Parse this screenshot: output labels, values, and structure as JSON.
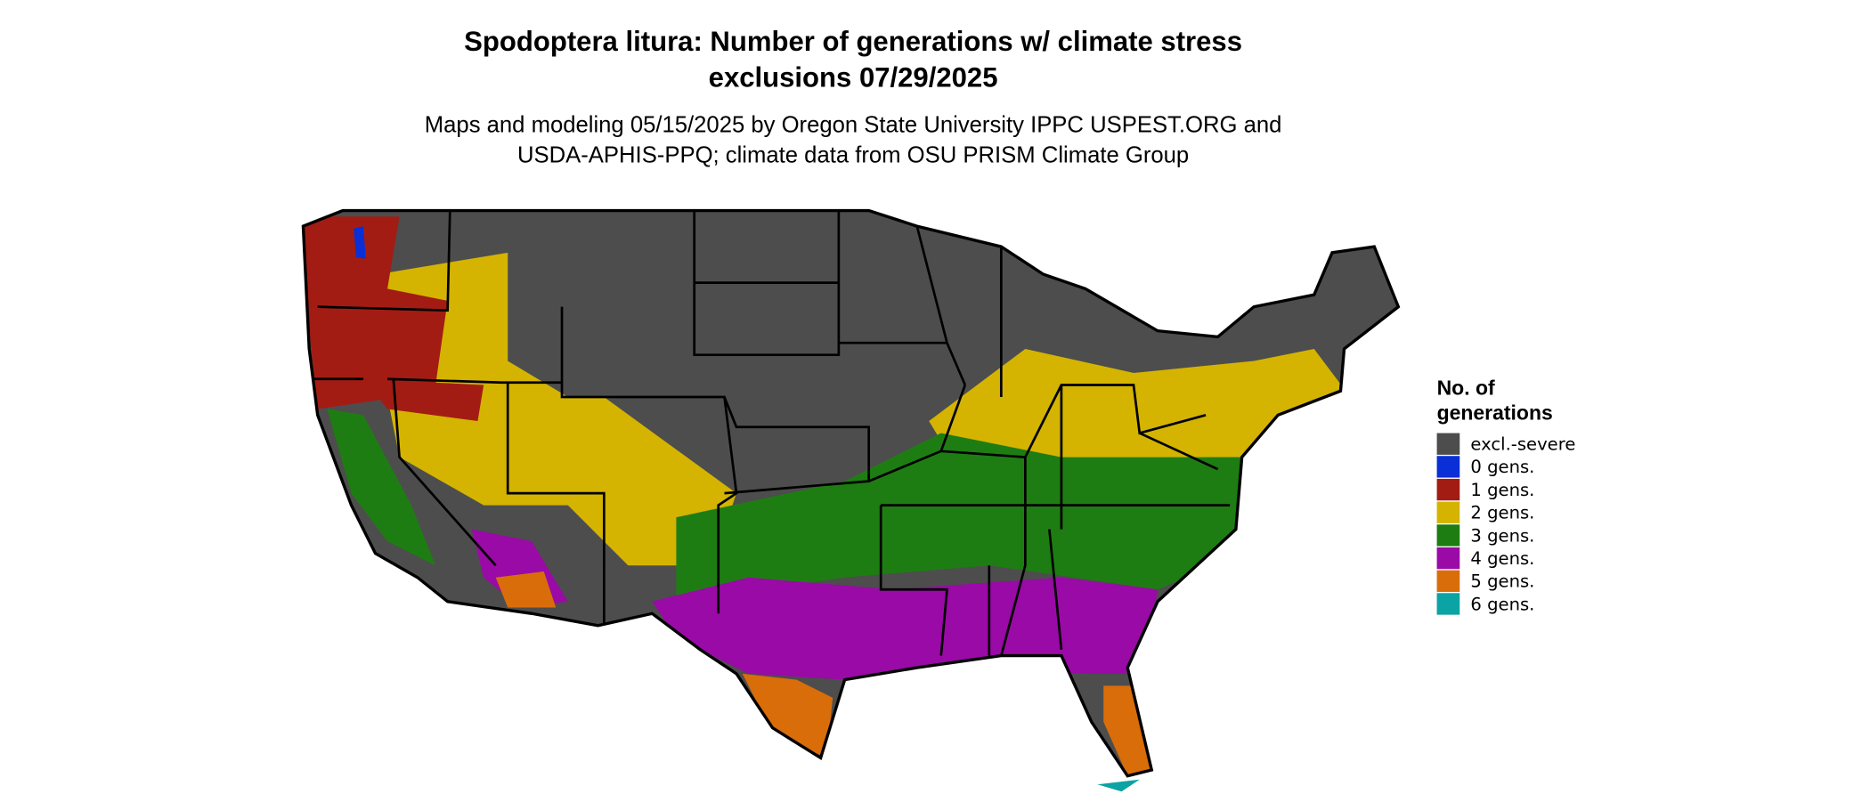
{
  "title": [
    "Spodoptera litura: Number of generations w/ climate stress",
    "exclusions 07/29/2025"
  ],
  "subtitle": [
    "Maps and modeling 05/15/2025 by Oregon State University IPPC USPEST.ORG and",
    "USDA-APHIS-PPQ; climate data from OSU PRISM Climate Group"
  ],
  "legend": {
    "title": [
      "No. of",
      "generations"
    ],
    "items": [
      {
        "label": "excl.-severe",
        "color": "#4d4d4d"
      },
      {
        "label": "0 gens.",
        "color": "#0a2fd6"
      },
      {
        "label": "1 gens.",
        "color": "#a21c14"
      },
      {
        "label": "2 gens.",
        "color": "#d4b400"
      },
      {
        "label": "3 gens.",
        "color": "#1e7d12"
      },
      {
        "label": "4 gens.",
        "color": "#9a0aa6"
      },
      {
        "label": "5 gens.",
        "color": "#d96d0a"
      },
      {
        "label": "6 gens.",
        "color": "#0ba3a3"
      }
    ]
  }
}
